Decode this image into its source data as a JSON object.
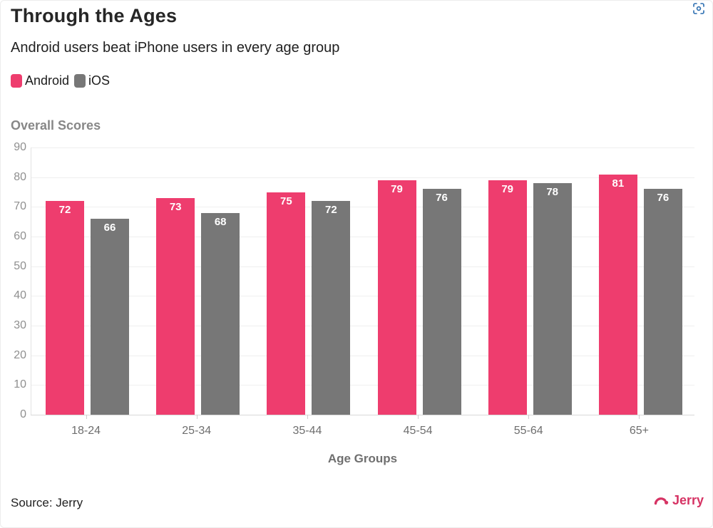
{
  "header": {
    "title": "Through the Ages",
    "subtitle": "Android users beat iPhone users in every age group"
  },
  "legend": [
    {
      "label": "Android",
      "color": "#ee3d6e"
    },
    {
      "label": "iOS",
      "color": "#777777"
    }
  ],
  "chart_data": {
    "type": "bar",
    "title": "Overall Scores",
    "categories": [
      "18-24",
      "25-34",
      "35-44",
      "45-54",
      "55-64",
      "65+"
    ],
    "series": [
      {
        "name": "Android",
        "color": "#ee3d6e",
        "values": [
          72,
          73,
          75,
          79,
          79,
          81
        ]
      },
      {
        "name": "iOS",
        "color": "#777777",
        "values": [
          66,
          68,
          72,
          76,
          78,
          76
        ]
      }
    ],
    "xlabel": "Age Groups",
    "ylabel": "",
    "ylim": [
      0,
      90
    ],
    "yticks": [
      0,
      10,
      20,
      30,
      40,
      50,
      60,
      70,
      80,
      90
    ],
    "grid": true,
    "value_labels": true,
    "legend_position": "top-left"
  },
  "footer": {
    "source": "Source: Jerry",
    "brand": "Jerry",
    "brand_color": "#d63364"
  },
  "icons": {
    "expand": "focus-expand-icon",
    "expand_color": "#2a6db0",
    "brand_mark": "jerry-arc-icon"
  }
}
